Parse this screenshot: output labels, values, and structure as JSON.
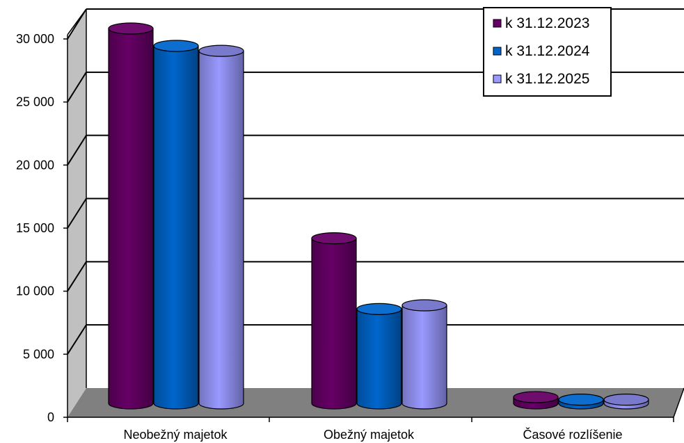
{
  "chart_data": {
    "type": "bar",
    "style": "3d-cylinder",
    "categories": [
      "Neobežný majetok",
      "Obežný majetok",
      "Časové rozlíšenie"
    ],
    "series": [
      {
        "name": "k 31.12.2023",
        "color": "#660066",
        "values": [
          30200,
          13300,
          500
        ]
      },
      {
        "name": "k 31.12.2024",
        "color": "#0066cc",
        "values": [
          28800,
          7600,
          300
        ]
      },
      {
        "name": "k 31.12.2025",
        "color": "#9999ff",
        "values": [
          28400,
          7900,
          300
        ]
      }
    ],
    "y_ticks": [
      "0",
      "5 000",
      "10 000",
      "15 000",
      "20 000",
      "25 000",
      "30 000"
    ],
    "ylim": [
      0,
      30000
    ],
    "grid": true,
    "legend_position": "top-right",
    "wall_color": "#c0c0c0",
    "floor_color": "#808080"
  }
}
